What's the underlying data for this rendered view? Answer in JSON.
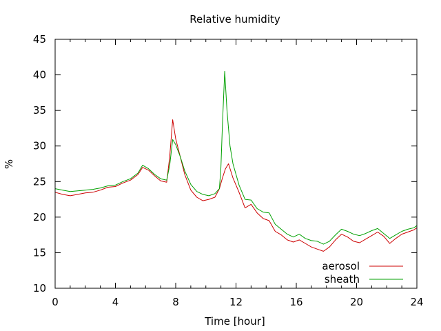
{
  "chart_data": {
    "type": "line",
    "title": "Relative humidity",
    "xlabel": "Time [hour]",
    "ylabel": "%",
    "xlim": [
      0,
      24
    ],
    "ylim": [
      10,
      45
    ],
    "xticks": [
      0,
      4,
      8,
      12,
      16,
      20,
      24
    ],
    "yticks": [
      10,
      15,
      20,
      25,
      30,
      35,
      40,
      45
    ],
    "grid": false,
    "legend_position": "bottom-right",
    "series": [
      {
        "name": "aerosol",
        "color": "#cc0000",
        "x": [
          0,
          0.5,
          1.0,
          1.5,
          2.0,
          2.5,
          3.0,
          3.5,
          4.0,
          4.5,
          5.0,
          5.5,
          5.8,
          6.2,
          6.6,
          7.0,
          7.4,
          7.6,
          7.8,
          8.0,
          8.3,
          8.6,
          9.0,
          9.4,
          9.8,
          10.2,
          10.6,
          10.9,
          11.1,
          11.3,
          11.5,
          11.8,
          12.2,
          12.6,
          13.0,
          13.4,
          13.8,
          14.2,
          14.6,
          15.0,
          15.4,
          15.8,
          16.2,
          16.6,
          17.0,
          17.4,
          17.8,
          18.2,
          18.6,
          19.0,
          19.4,
          19.8,
          20.2,
          20.6,
          21.0,
          21.4,
          21.8,
          22.2,
          22.6,
          23.0,
          23.4,
          23.8,
          24.0
        ],
        "y": [
          23.5,
          23.2,
          23.0,
          23.2,
          23.4,
          23.5,
          23.8,
          24.2,
          24.3,
          24.8,
          25.2,
          26.0,
          27.0,
          26.6,
          25.8,
          25.1,
          24.9,
          28.5,
          33.7,
          31.0,
          28.5,
          26.0,
          23.8,
          22.8,
          22.3,
          22.5,
          22.8,
          24.0,
          25.5,
          26.8,
          27.5,
          25.5,
          23.5,
          21.3,
          21.8,
          20.6,
          19.8,
          19.5,
          18.0,
          17.5,
          16.8,
          16.5,
          16.8,
          16.3,
          15.8,
          15.5,
          15.2,
          15.8,
          16.8,
          17.6,
          17.2,
          16.6,
          16.4,
          16.9,
          17.4,
          17.9,
          17.3,
          16.3,
          17.0,
          17.6,
          17.9,
          18.2,
          18.5
        ]
      },
      {
        "name": "sheath",
        "color": "#00a000",
        "x": [
          0,
          0.5,
          1.0,
          1.5,
          2.0,
          2.5,
          3.0,
          3.5,
          4.0,
          4.5,
          5.0,
          5.5,
          5.8,
          6.2,
          6.6,
          7.0,
          7.4,
          7.6,
          7.8,
          8.0,
          8.3,
          8.6,
          9.0,
          9.4,
          9.8,
          10.2,
          10.6,
          10.9,
          11.0,
          11.1,
          11.25,
          11.4,
          11.6,
          11.8,
          12.2,
          12.6,
          13.0,
          13.4,
          13.8,
          14.2,
          14.6,
          15.0,
          15.4,
          15.8,
          16.2,
          16.6,
          17.0,
          17.4,
          17.8,
          18.2,
          18.6,
          19.0,
          19.4,
          19.8,
          20.2,
          20.6,
          21.0,
          21.4,
          21.8,
          22.2,
          22.6,
          23.0,
          23.4,
          23.8,
          24.0
        ],
        "y": [
          24.0,
          23.8,
          23.6,
          23.7,
          23.8,
          23.9,
          24.1,
          24.4,
          24.5,
          25.0,
          25.4,
          26.2,
          27.3,
          26.8,
          26.0,
          25.4,
          25.2,
          27.3,
          30.9,
          30.2,
          28.5,
          26.5,
          24.6,
          23.6,
          23.2,
          23.0,
          23.3,
          24.0,
          27.0,
          33.0,
          40.5,
          35.0,
          30.0,
          27.5,
          24.5,
          22.5,
          22.4,
          21.2,
          20.7,
          20.6,
          19.0,
          18.3,
          17.6,
          17.2,
          17.6,
          17.0,
          16.7,
          16.6,
          16.2,
          16.6,
          17.5,
          18.3,
          18.0,
          17.6,
          17.4,
          17.7,
          18.1,
          18.4,
          17.7,
          17.0,
          17.5,
          18.0,
          18.3,
          18.5,
          18.8
        ]
      }
    ]
  }
}
